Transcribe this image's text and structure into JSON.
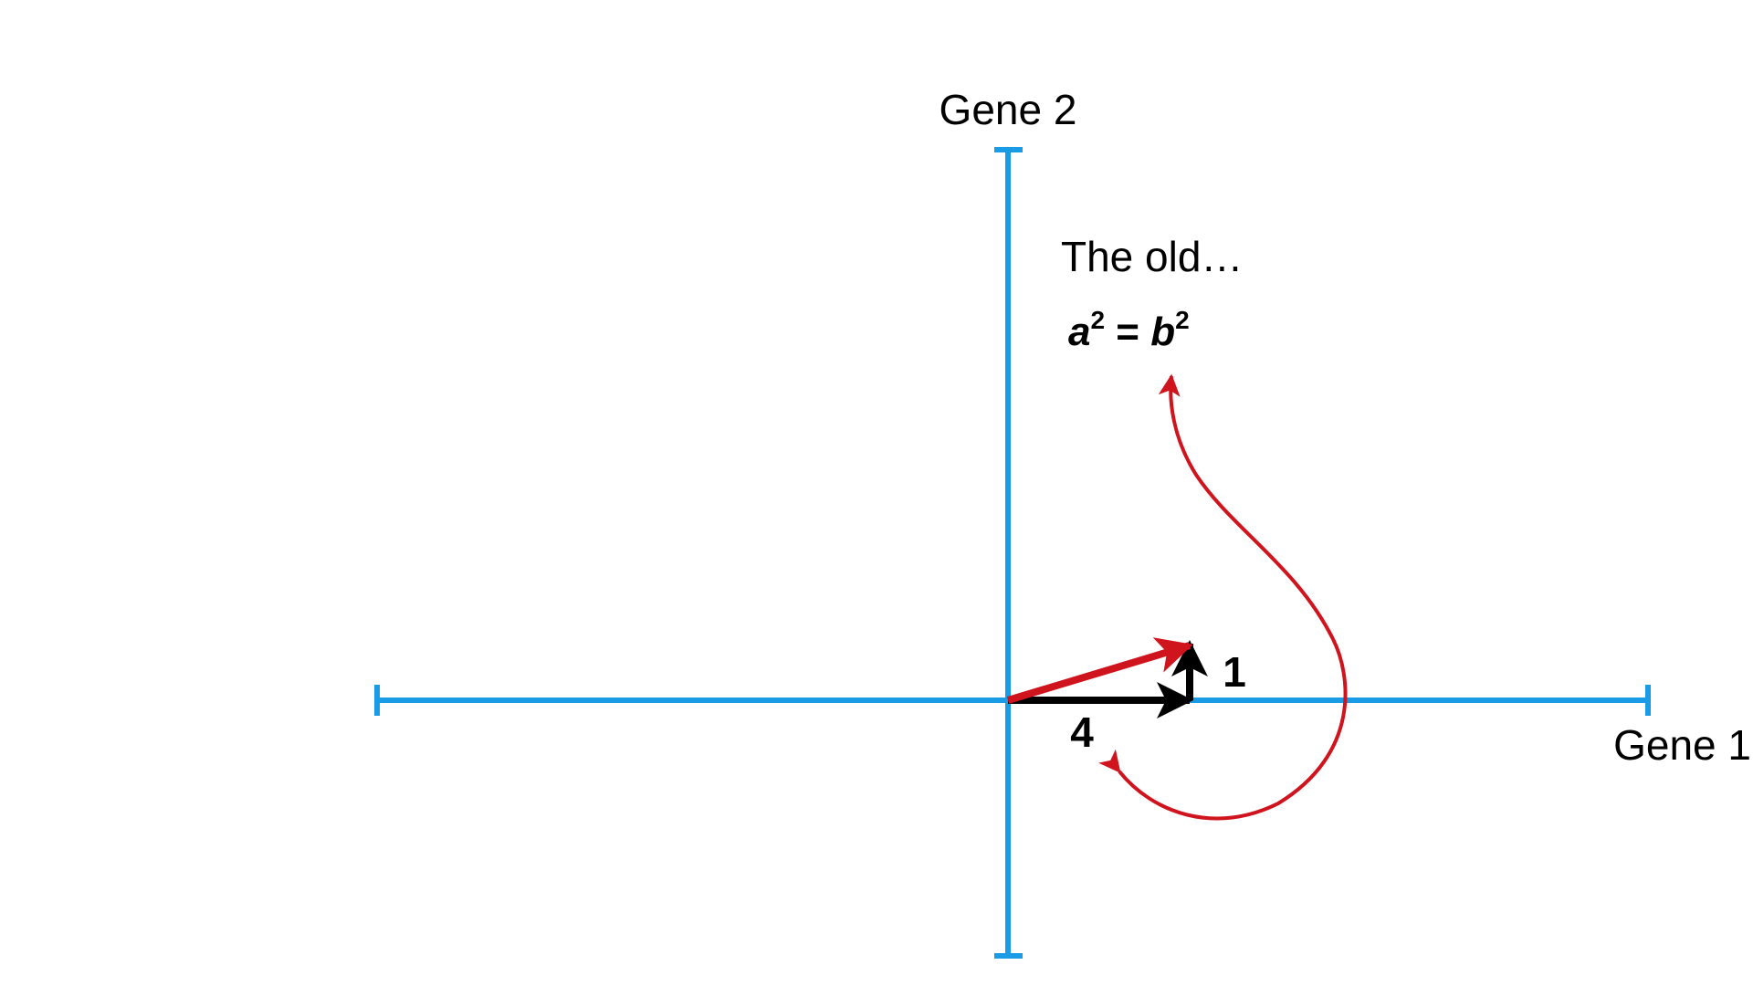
{
  "axes": {
    "x_label": "Gene 1",
    "y_label": "Gene 2"
  },
  "vectors": {
    "horizontal_component": "4",
    "vertical_component": "1"
  },
  "annotation": {
    "caption": "The old…",
    "equation": {
      "a": "a",
      "exp1": "2",
      "eq": " = ",
      "b": "b",
      "exp2": "2"
    }
  },
  "colors": {
    "axis": "#1a9be6",
    "vector": "#000000",
    "resultant": "#d0141e",
    "arc": "#d0141e"
  }
}
